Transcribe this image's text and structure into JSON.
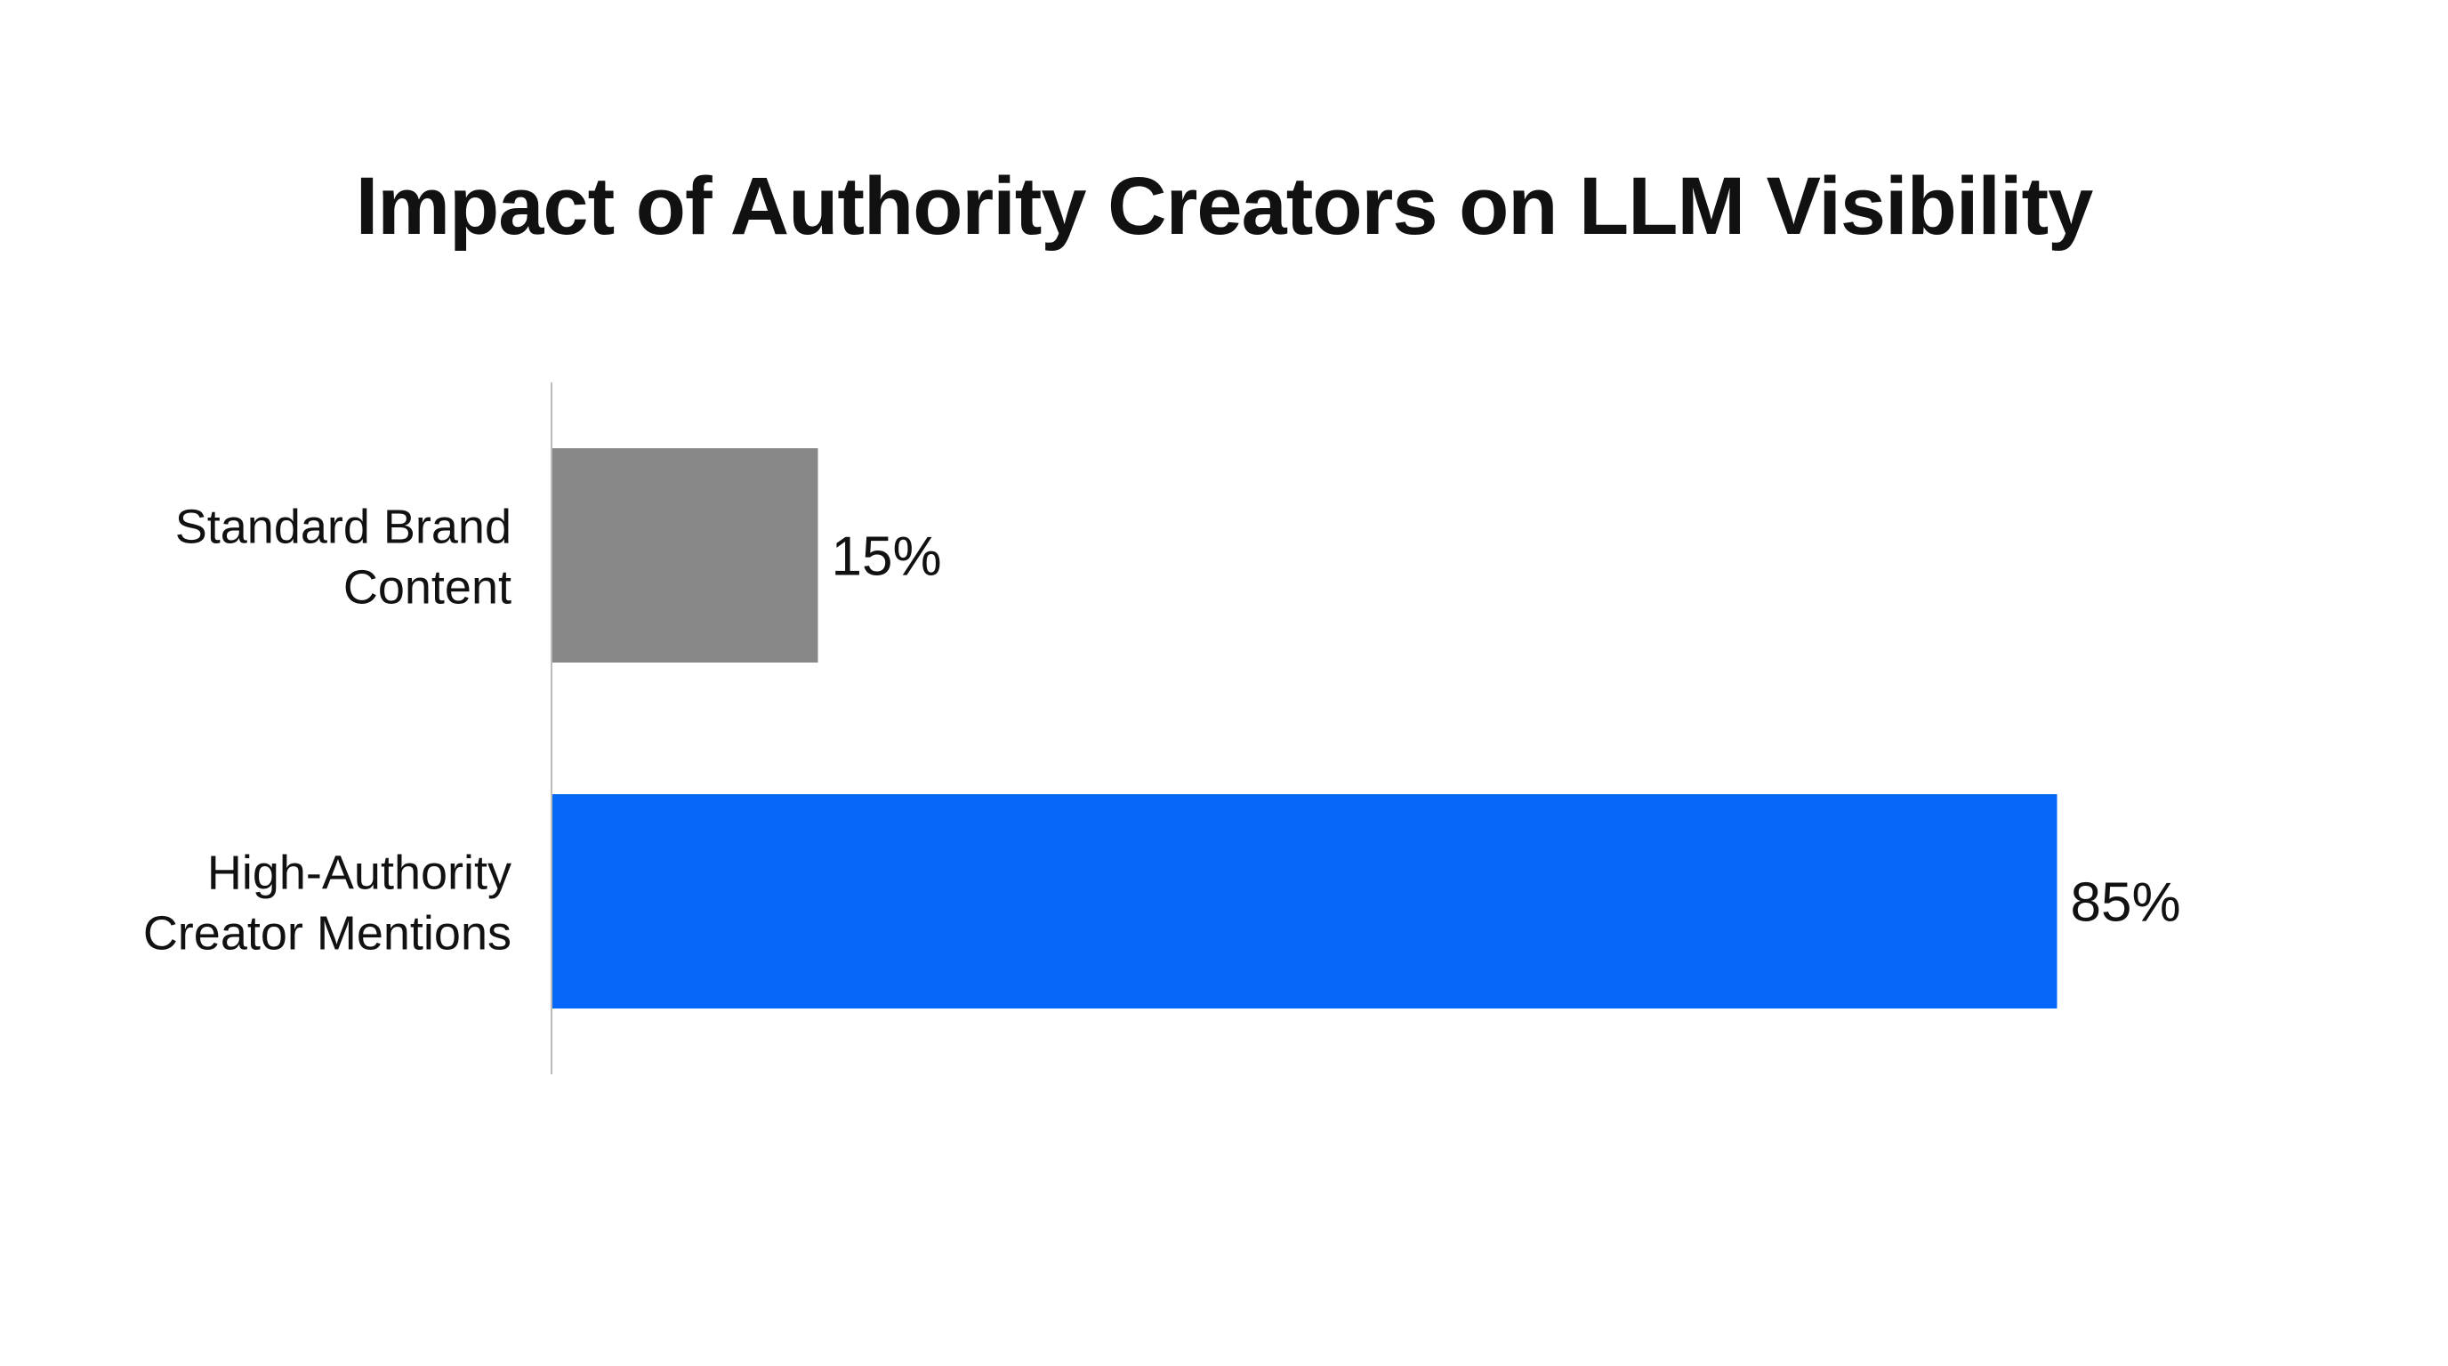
{
  "chart_data": {
    "type": "bar",
    "orientation": "horizontal",
    "title": "Impact of Authority Creators on LLM Visibility",
    "categories": [
      [
        "Standard Brand",
        "Content"
      ],
      [
        "High-Authority",
        "Creator Mentions"
      ]
    ],
    "values": [
      15,
      85
    ],
    "value_labels": [
      "15%",
      "85%"
    ],
    "colors": [
      "#878787",
      "#0568F8"
    ],
    "xlim": [
      0,
      100
    ],
    "grid": false,
    "xlabel": "",
    "ylabel": ""
  }
}
